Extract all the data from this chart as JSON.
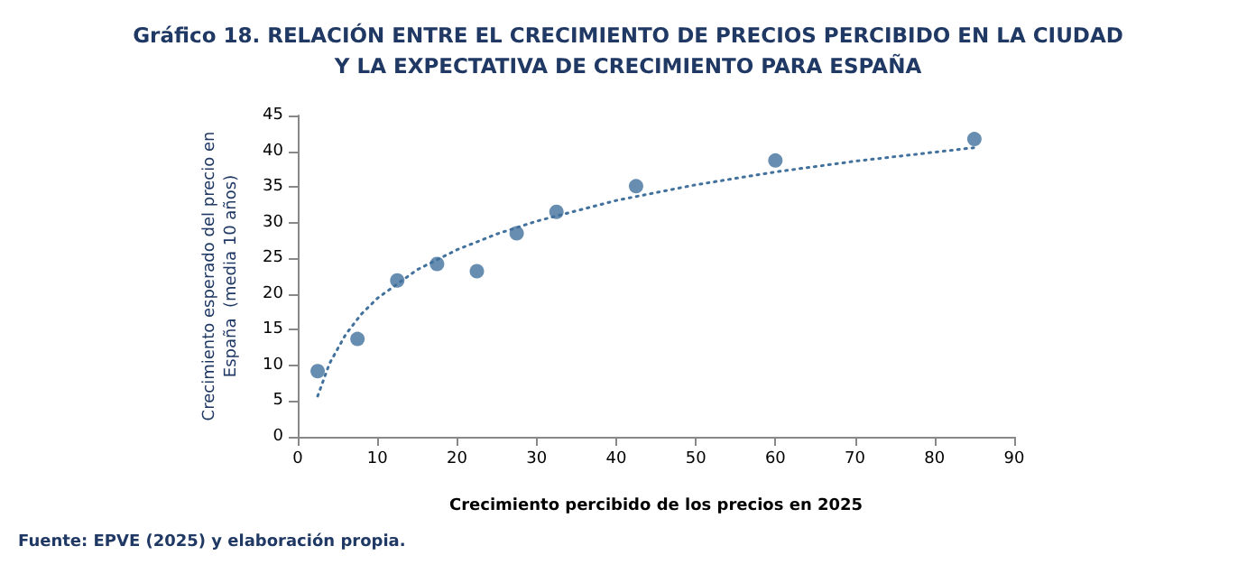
{
  "chart_data": {
    "type": "scatter",
    "title": "Gráfico 18. RELACIÓN ENTRE EL CRECIMIENTO DE PRECIOS PERCIBIDO EN LA CIUDAD\nY LA EXPECTATIVA DE CRECIMIENTO PARA ESPAÑA",
    "xlabel": "Crecimiento percibido de los precios en 2025",
    "ylabel": "Crecimiento esperado del precio en\nEspaña  (media 10 años)",
    "annotations": [
      "Fuente: EPVE (2025) y elaboración propia."
    ],
    "series": [
      {
        "color": "#41719c",
        "x": [
          2.5,
          7.5,
          12.5,
          17.5,
          22.5,
          27.5,
          32.5,
          42.5,
          60,
          85
        ],
        "values": [
          9.2,
          13.7,
          21.9,
          24.2,
          23.2,
          28.5,
          31.5,
          35.1,
          38.7,
          41.7
        ],
        "marker": "circle"
      },
      {
        "type": "line",
        "color": "#41719c",
        "line_style": "dotted",
        "marker": "none",
        "x": [
          2.5,
          4,
          6,
          8,
          10,
          15,
          20,
          25,
          30,
          40,
          50,
          60,
          70,
          85
        ],
        "values": [
          5.7,
          10.3,
          14.3,
          17.2,
          19.4,
          23.4,
          26.2,
          28.4,
          30.2,
          33.1,
          35.3,
          37.1,
          38.6,
          40.5
        ]
      }
    ],
    "xlim": [
      0,
      90
    ],
    "xticks": [
      0,
      10,
      20,
      30,
      40,
      50,
      60,
      70,
      80,
      90
    ],
    "ylim": [
      0,
      45
    ],
    "yticks": [
      0,
      5,
      10,
      15,
      20,
      25,
      30,
      35,
      40,
      45
    ],
    "grid": false
  }
}
